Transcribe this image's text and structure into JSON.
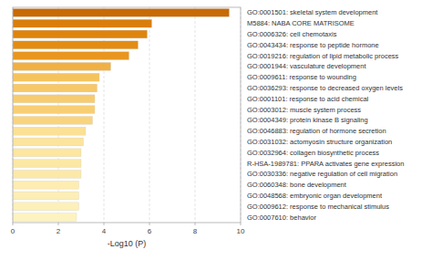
{
  "chart_data": {
    "type": "bar",
    "orientation": "horizontal",
    "categories": [
      "GO:0001501: skeletal system development",
      "M5884: NABA CORE MATRISOME",
      "GO:0006326: cell chemotaxis",
      "GO:0043434: response to peptide hormone",
      "GO:0019216: regulation of lipid metabolic process",
      "GO:0001944: vasculature development",
      "GO:0009611: response to wounding",
      "GO:0036293: response to decreased oxygen levels",
      "GO:0001101: response to acid chemical",
      "GO:0003012: muscle system process",
      "GO:0004349: protein kinase B signaling",
      "GO:0046883: regulation of hormone secretion",
      "GO:0031032: actomyosin structure organization",
      "GO:0032964: collagen biosynthetic process",
      "R-HSA-1989781: PPARA activates gene expression",
      "GO:0030336: negative regulation of cell migration",
      "GO:0060348: bone development",
      "GO:0048568: embryonic organ development",
      "GO:0009612: response to mechanical stimulus",
      "GO:0007610: behavior"
    ],
    "values": [
      9.5,
      6.1,
      5.9,
      5.5,
      5.1,
      4.3,
      3.8,
      3.7,
      3.6,
      3.6,
      3.5,
      3.2,
      3.1,
      3.0,
      3.0,
      3.0,
      2.9,
      2.9,
      2.9,
      2.8
    ],
    "colors": [
      "#c86a05",
      "#d97e0b",
      "#de840d",
      "#e38c12",
      "#e89620",
      "#f0b044",
      "#f5c35e",
      "#f6c868",
      "#f7cc70",
      "#f8ce74",
      "#f9d47e",
      "#fbe095",
      "#fce49c",
      "#fce6a0",
      "#fce8a5",
      "#fce9a8",
      "#fdedb0",
      "#fdeeb5",
      "#fdf0b8",
      "#fdf3c0"
    ],
    "xlabel": "-Log10 (P)",
    "xlim": [
      0,
      10
    ],
    "xticks": [
      0,
      2,
      4,
      6,
      8,
      10
    ],
    "grid": true
  }
}
